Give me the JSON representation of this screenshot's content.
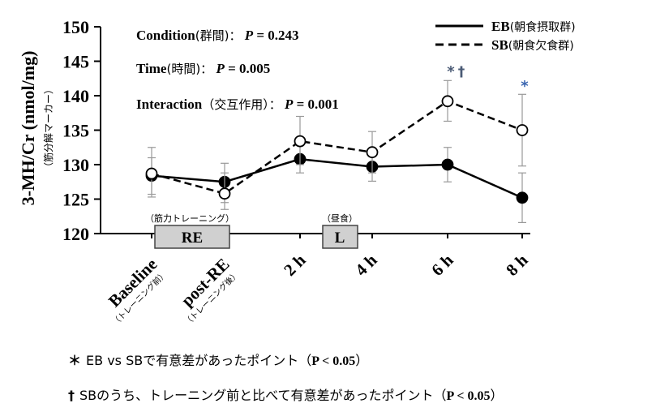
{
  "chart_data": {
    "type": "line",
    "ylabel_main": "3-MH/Cr (nmol/mg)",
    "ylabel_sub": "（筋分解マーカー）",
    "ylim": [
      120,
      150
    ],
    "yticks": [
      120,
      125,
      130,
      135,
      140,
      145,
      150
    ],
    "categories": [
      {
        "label": "Baseline",
        "sub": "（トレーニング前）"
      },
      {
        "label": "post-RE",
        "sub": "（トレーニング後）"
      },
      {
        "label": "2 h",
        "sub": ""
      },
      {
        "label": "4 h",
        "sub": ""
      },
      {
        "label": "6 h",
        "sub": ""
      },
      {
        "label": "8 h",
        "sub": ""
      }
    ],
    "series": [
      {
        "name": "EB",
        "name_jp": "(朝食摂取群)",
        "style": "solid",
        "marker": "filled",
        "values": [
          128.4,
          127.5,
          130.8,
          129.7,
          130.0,
          125.2
        ],
        "err_hi": [
          131.0,
          130.2,
          133.0,
          132.1,
          132.5,
          128.8
        ],
        "err_lo": [
          125.7,
          124.5,
          128.8,
          127.6,
          127.5,
          121.6
        ]
      },
      {
        "name": "SB",
        "name_jp": "(朝食欠食群)",
        "style": "dashed",
        "marker": "open",
        "values": [
          128.7,
          125.8,
          133.4,
          131.8,
          139.2,
          135.0
        ],
        "err_hi": [
          132.5,
          128.8,
          137.0,
          134.8,
          142.2,
          140.2
        ],
        "err_lo": [
          125.3,
          123.5,
          130.0,
          128.8,
          136.3,
          129.8
        ]
      }
    ],
    "stats": [
      {
        "label": "Condition",
        "jp": "(群間)",
        "p": "0.243"
      },
      {
        "label": "Time",
        "jp": "(時間)",
        "p": "0.005"
      },
      {
        "label": "Interaction",
        "jp": "（交互作用）",
        "p": "0.001"
      }
    ],
    "boxes": [
      {
        "label": "RE",
        "caption": "（筋力トレーニング）"
      },
      {
        "label": "L",
        "caption": "（昼食）"
      }
    ],
    "annotations": [
      {
        "category_index": 4,
        "text": "*",
        "color": "#4a5a75"
      },
      {
        "category_index": 4,
        "text": "†",
        "color": "#4a5a75"
      },
      {
        "category_index": 5,
        "text": "*",
        "color": "#3a65b0"
      }
    ],
    "colors": {
      "annotation_blue": "#3a65b0",
      "box_fill": "#d0d0d0"
    }
  },
  "footnotes": [
    {
      "symbol": "＊",
      "text_pre": "EB vs SBで有意差があったポイント（",
      "stat": "P < 0.05",
      "text_post": "）"
    },
    {
      "symbol": "†",
      "text_pre": "SBのうち、トレーニング前と比べて有意差があったポイント（",
      "stat": "P < 0.05",
      "text_post": "）"
    }
  ]
}
